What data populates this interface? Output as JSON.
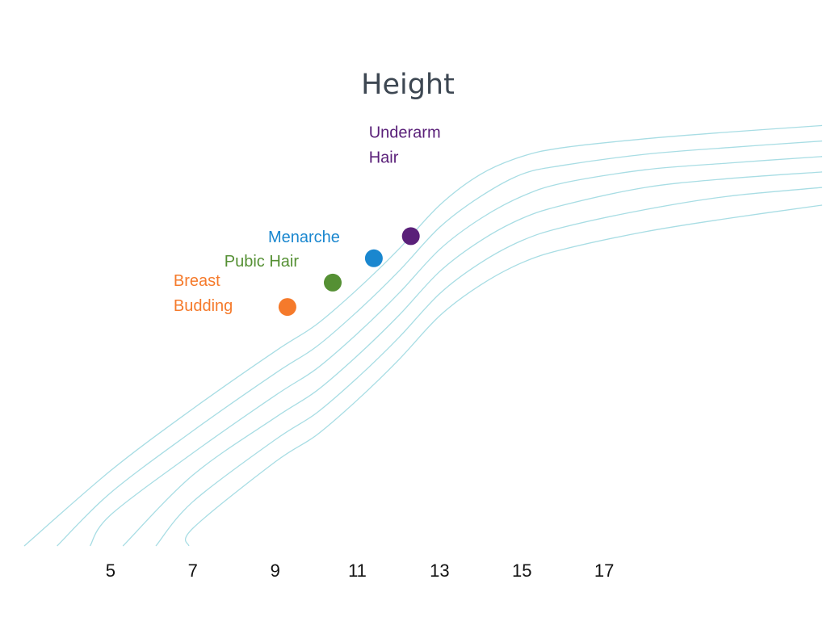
{
  "chart_data": {
    "type": "line",
    "title": "Height",
    "xlabel": "",
    "ylabel": "",
    "x_ticks": [
      "5",
      "7",
      "9",
      "11",
      "13",
      "15",
      "17"
    ],
    "xlim": [
      2.9,
      22.3
    ],
    "ylim": [
      0,
      100
    ],
    "grid": false,
    "legend": "none",
    "curve_color": "#a8dde4",
    "text_color": "#3d4752",
    "tick_color": "#111111",
    "reference_curves": [
      {
        "x": [
          2.9,
          5,
          7,
          9,
          10,
          11,
          12,
          13,
          14,
          15,
          16,
          18,
          20,
          22.3
        ],
        "y": [
          0,
          17,
          31,
          44,
          50,
          58,
          67,
          77,
          84,
          88,
          90,
          92,
          93.5,
          95
        ]
      },
      {
        "x": [
          3.7,
          5,
          7,
          9,
          10,
          11,
          12,
          13,
          14,
          15,
          16,
          18,
          20,
          22.3
        ],
        "y": [
          0,
          12,
          26,
          39,
          45,
          53,
          62,
          72,
          79,
          84,
          86,
          88.5,
          90,
          91.5
        ]
      },
      {
        "x": [
          4.5,
          5,
          7,
          9,
          10,
          11,
          12,
          13,
          14,
          15,
          16,
          18,
          20,
          22.3
        ],
        "y": [
          0,
          7,
          21,
          34,
          40,
          48,
          57,
          67,
          74,
          79,
          82,
          85,
          86.5,
          88
        ]
      },
      {
        "x": [
          5.3,
          7,
          9,
          10,
          11,
          12,
          13,
          14,
          15,
          16,
          18,
          20,
          22.3
        ],
        "y": [
          0,
          16,
          29,
          35,
          43,
          52,
          62,
          69,
          74,
          77,
          81,
          83,
          84.5
        ]
      },
      {
        "x": [
          6.1,
          7,
          9,
          10,
          11,
          12,
          13,
          14,
          15,
          16,
          18,
          20,
          22.3
        ],
        "y": [
          0,
          10,
          24,
          30,
          38,
          47,
          57,
          64,
          69,
          72,
          76,
          79,
          81
        ]
      },
      {
        "x": [
          6.9,
          7,
          9,
          10,
          11,
          12,
          13,
          14,
          15,
          16,
          18,
          20,
          22.3
        ],
        "y": [
          0,
          4,
          19,
          25,
          33,
          42,
          52,
          59,
          64,
          67,
          71,
          74,
          77
        ]
      }
    ],
    "milestones": [
      {
        "label_lines": [
          "Breast",
          "Budding"
        ],
        "x": 9.3,
        "y": 54,
        "color": "#f57a2b",
        "label_side": "left"
      },
      {
        "label_lines": [
          "Pubic Hair"
        ],
        "x": 10.4,
        "y": 59.5,
        "color": "#559034",
        "label_side": "left"
      },
      {
        "label_lines": [
          "Menarche"
        ],
        "x": 11.4,
        "y": 65,
        "color": "#1a87cf",
        "label_side": "left"
      },
      {
        "label_lines": [
          "Underarm",
          "Hair"
        ],
        "x": 12.3,
        "y": 70,
        "color": "#5a2079",
        "label_side": "above"
      }
    ]
  }
}
